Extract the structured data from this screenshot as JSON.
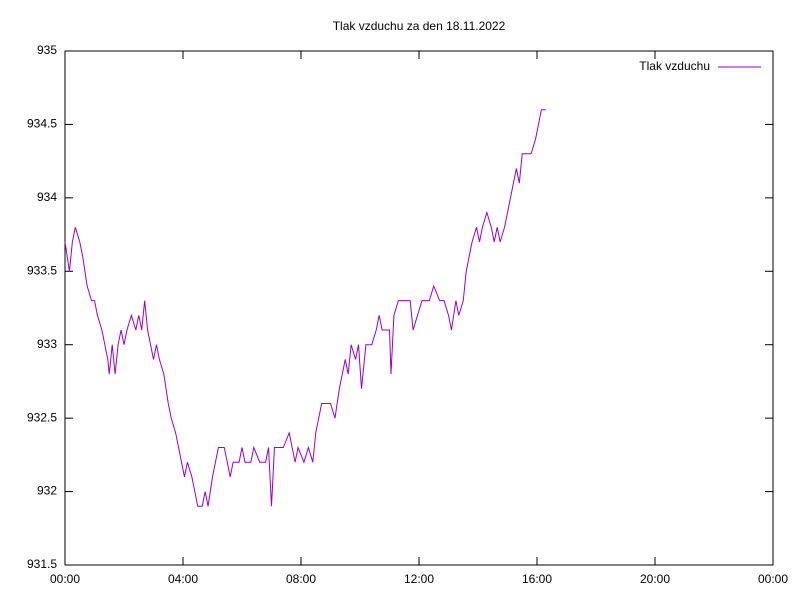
{
  "chart_data": {
    "type": "line",
    "title": "Tlak vzduchu za den 18.11.2022",
    "xlim": [
      0,
      24
    ],
    "xticks": [
      {
        "value": 0,
        "label": "00:00"
      },
      {
        "value": 4,
        "label": "04:00"
      },
      {
        "value": 8,
        "label": "08:00"
      },
      {
        "value": 12,
        "label": "12:00"
      },
      {
        "value": 16,
        "label": "16:00"
      },
      {
        "value": 20,
        "label": "20:00"
      },
      {
        "value": 24,
        "label": "00:00"
      }
    ],
    "ylim": [
      931.5,
      935
    ],
    "yticks": [
      931.5,
      932,
      932.5,
      933,
      933.5,
      934,
      934.5,
      935
    ],
    "grid": false,
    "legend": "top-right",
    "series": [
      {
        "name": "Tlak vzduchu",
        "color": "#9400d3",
        "x": [
          0.0,
          0.15,
          0.25,
          0.35,
          0.5,
          0.6,
          0.75,
          0.9,
          1.0,
          1.1,
          1.25,
          1.35,
          1.45,
          1.5,
          1.6,
          1.7,
          1.8,
          1.9,
          2.0,
          2.1,
          2.25,
          2.4,
          2.5,
          2.6,
          2.7,
          2.8,
          2.9,
          3.0,
          3.1,
          3.2,
          3.35,
          3.5,
          3.6,
          3.75,
          3.85,
          3.95,
          4.05,
          4.15,
          4.3,
          4.5,
          4.65,
          4.75,
          4.85,
          5.0,
          5.1,
          5.2,
          5.4,
          5.5,
          5.6,
          5.7,
          5.9,
          6.0,
          6.1,
          6.3,
          6.4,
          6.6,
          6.8,
          6.9,
          7.0,
          7.1,
          7.4,
          7.6,
          7.8,
          7.9,
          8.1,
          8.25,
          8.4,
          8.5,
          8.7,
          9.0,
          9.15,
          9.3,
          9.4,
          9.5,
          9.6,
          9.7,
          9.85,
          9.95,
          10.05,
          10.2,
          10.4,
          10.55,
          10.65,
          10.75,
          11.0,
          11.05,
          11.15,
          11.3,
          11.5,
          11.7,
          11.8,
          11.95,
          12.1,
          12.35,
          12.5,
          12.7,
          12.85,
          13.0,
          13.1,
          13.25,
          13.35,
          13.5,
          13.6,
          13.7,
          13.8,
          13.95,
          14.05,
          14.15,
          14.3,
          14.45,
          14.55,
          14.65,
          14.75,
          14.9,
          15.0,
          15.1,
          15.2,
          15.3,
          15.4,
          15.5,
          15.65,
          15.8,
          15.95,
          16.05,
          16.15,
          16.3
        ],
        "values": [
          933.7,
          933.5,
          933.7,
          933.8,
          933.7,
          933.6,
          933.4,
          933.3,
          933.3,
          933.2,
          933.1,
          933.0,
          932.9,
          932.8,
          933.0,
          932.8,
          933.0,
          933.1,
          933.0,
          933.1,
          933.2,
          933.1,
          933.2,
          933.1,
          933.3,
          933.1,
          933.0,
          932.9,
          933.0,
          932.9,
          932.8,
          932.6,
          932.5,
          932.4,
          932.3,
          932.2,
          932.1,
          932.2,
          932.1,
          931.9,
          931.9,
          932.0,
          931.9,
          932.1,
          932.2,
          932.3,
          932.3,
          932.2,
          932.1,
          932.2,
          932.2,
          932.3,
          932.2,
          932.2,
          932.3,
          932.2,
          932.2,
          932.3,
          931.9,
          932.3,
          932.3,
          932.4,
          932.2,
          932.3,
          932.2,
          932.3,
          932.2,
          932.4,
          932.6,
          932.6,
          932.5,
          932.7,
          932.8,
          932.9,
          932.8,
          933.0,
          932.9,
          933.0,
          932.7,
          933.0,
          933.0,
          933.1,
          933.2,
          933.1,
          933.1,
          932.8,
          933.2,
          933.3,
          933.3,
          933.3,
          933.1,
          933.2,
          933.3,
          933.3,
          933.4,
          933.3,
          933.3,
          933.2,
          933.1,
          933.3,
          933.2,
          933.3,
          933.5,
          933.6,
          933.7,
          933.8,
          933.7,
          933.8,
          933.9,
          933.8,
          933.7,
          933.8,
          933.7,
          933.8,
          933.9,
          934.0,
          934.1,
          934.2,
          934.1,
          934.3,
          934.3,
          934.3,
          934.4,
          934.5,
          934.6,
          934.6
        ]
      }
    ]
  }
}
